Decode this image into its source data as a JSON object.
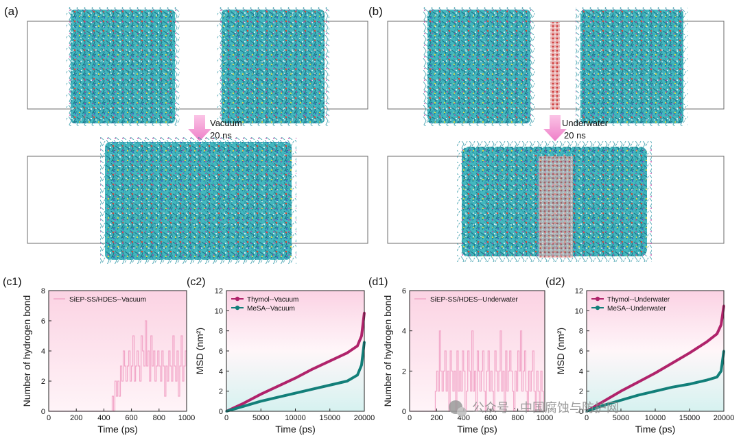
{
  "panels": {
    "a": {
      "label": "(a)",
      "arrow_label_1": "Vacuum",
      "arrow_label_2": "20 ns"
    },
    "b": {
      "label": "(b)",
      "arrow_label_1": "Underwater",
      "arrow_label_2": "20 ns"
    }
  },
  "colors": {
    "hbond_line": "#f2a6c8",
    "thymol": "#b0236b",
    "mesa": "#127f79",
    "arrow": "#f28ccf",
    "box": "#6b6b6b",
    "water": "#cf3b3b"
  },
  "watermark": "公众号 · 中国腐蚀与防护网",
  "chart_data": [
    {
      "id": "c1",
      "panel_label": "(c1)",
      "type": "line",
      "xlabel": "Time (ps)",
      "ylabel": "Number of hydrogen bond",
      "xlim": [
        0,
        1000
      ],
      "ylim": [
        0,
        8
      ],
      "xticks": [
        0,
        200,
        400,
        600,
        800,
        1000
      ],
      "yticks": [
        0,
        2,
        4,
        6,
        8
      ],
      "legend_position": "top-left",
      "series": [
        {
          "name": "SiEP-SS/HDES--Vacuum",
          "x": [
            0,
            100,
            200,
            300,
            400,
            450,
            460,
            470,
            480,
            490,
            500,
            510,
            520,
            530,
            540,
            550,
            560,
            570,
            580,
            590,
            600,
            610,
            620,
            630,
            640,
            650,
            660,
            670,
            680,
            690,
            700,
            710,
            720,
            730,
            740,
            750,
            760,
            770,
            780,
            790,
            800,
            810,
            820,
            830,
            840,
            850,
            860,
            870,
            880,
            890,
            900,
            910,
            920,
            930,
            940,
            950,
            960,
            970,
            980,
            990,
            1000
          ],
          "y": [
            0,
            0,
            0,
            0,
            0,
            0,
            1,
            0,
            2,
            1,
            2,
            1,
            3,
            2,
            4,
            3,
            2,
            3,
            4,
            2,
            3,
            5,
            2,
            3,
            4,
            3,
            2,
            5,
            4,
            3,
            6,
            3,
            4,
            2,
            5,
            3,
            4,
            2,
            3,
            4,
            3,
            2,
            4,
            3,
            1,
            3,
            2,
            4,
            3,
            2,
            5,
            3,
            2,
            4,
            1,
            3,
            5,
            2,
            3,
            4,
            3
          ]
        }
      ]
    },
    {
      "id": "c2",
      "panel_label": "(c2)",
      "type": "line",
      "xlabel": "Time (ps)",
      "ylabel": "MSD (nm²)",
      "xlim": [
        0,
        20000
      ],
      "ylim": [
        0,
        12
      ],
      "xticks": [
        0,
        5000,
        10000,
        15000,
        20000
      ],
      "yticks": [
        0,
        2,
        4,
        6,
        8,
        10,
        12
      ],
      "legend_position": "top-left",
      "series": [
        {
          "name": "Thymol--Vacuum",
          "x": [
            0,
            2500,
            5000,
            7500,
            10000,
            12500,
            15000,
            17500,
            19000,
            19600,
            20000
          ],
          "y": [
            0,
            0.8,
            1.7,
            2.5,
            3.3,
            4.2,
            5.0,
            5.8,
            6.5,
            7.5,
            9.8
          ]
        },
        {
          "name": "MeSA--Vacuum",
          "x": [
            0,
            2500,
            5000,
            7500,
            10000,
            12500,
            15000,
            17500,
            19000,
            19600,
            20000
          ],
          "y": [
            0,
            0.5,
            1.0,
            1.4,
            1.8,
            2.2,
            2.6,
            3.0,
            3.6,
            4.6,
            6.9
          ]
        }
      ]
    },
    {
      "id": "d1",
      "panel_label": "(d1)",
      "type": "line",
      "xlabel": "Time (ps)",
      "ylabel": "Number of hydrogen bond",
      "xlim": [
        0,
        1000
      ],
      "ylim": [
        0,
        6
      ],
      "xticks": [
        0,
        200,
        400,
        600,
        800,
        1000
      ],
      "yticks": [
        0,
        2,
        4,
        6
      ],
      "legend_position": "top-left",
      "series": [
        {
          "name": "SiEP-SS/HDES--Underwater",
          "x": [
            0,
            100,
            180,
            190,
            200,
            210,
            220,
            230,
            240,
            250,
            260,
            270,
            280,
            290,
            300,
            310,
            320,
            330,
            340,
            350,
            360,
            370,
            380,
            390,
            400,
            410,
            420,
            430,
            440,
            450,
            460,
            470,
            480,
            490,
            500,
            510,
            520,
            530,
            540,
            550,
            560,
            570,
            580,
            590,
            600,
            610,
            620,
            630,
            640,
            650,
            660,
            670,
            680,
            690,
            700,
            710,
            720,
            730,
            740,
            750,
            760,
            770,
            780,
            790,
            800,
            810,
            820,
            830,
            840,
            850,
            860,
            870,
            880,
            890,
            900,
            910,
            920,
            930,
            940,
            950,
            960,
            970,
            980,
            990,
            1000
          ],
          "y": [
            0,
            0,
            0,
            1,
            2,
            1,
            4,
            2,
            1,
            2,
            3,
            1,
            2,
            0,
            3,
            2,
            1,
            2,
            0,
            3,
            1,
            2,
            1,
            3,
            2,
            0,
            1,
            3,
            2,
            1,
            4,
            1,
            2,
            0,
            3,
            2,
            1,
            2,
            3,
            1,
            0,
            2,
            3,
            1,
            2,
            1,
            0,
            3,
            2,
            1,
            2,
            4,
            1,
            2,
            0,
            3,
            1,
            2,
            3,
            2,
            1,
            0,
            2,
            1,
            3,
            2,
            4,
            1,
            2,
            3,
            1,
            0,
            2,
            1,
            2,
            3,
            1,
            0,
            2,
            1,
            0,
            2,
            1,
            0,
            0
          ]
        }
      ]
    },
    {
      "id": "d2",
      "panel_label": "(d2)",
      "type": "line",
      "xlabel": "Time (ps)",
      "ylabel": "MSD (nm²)",
      "xlim": [
        0,
        20000
      ],
      "ylim": [
        0,
        12
      ],
      "xticks": [
        0,
        5000,
        10000,
        15000,
        20000
      ],
      "yticks": [
        0,
        2,
        4,
        6,
        8,
        10,
        12
      ],
      "legend_position": "top-left",
      "series": [
        {
          "name": "Thymol--Underwater",
          "x": [
            0,
            2500,
            5000,
            7500,
            10000,
            12500,
            15000,
            17500,
            19000,
            19600,
            20000
          ],
          "y": [
            0,
            1.0,
            2.0,
            2.9,
            3.8,
            4.8,
            5.8,
            6.9,
            7.7,
            8.6,
            10.5
          ]
        },
        {
          "name": "MeSA--Underwater",
          "x": [
            0,
            2500,
            5000,
            7500,
            10000,
            12500,
            15000,
            17500,
            19000,
            19600,
            20000
          ],
          "y": [
            0,
            0.6,
            1.1,
            1.6,
            2.0,
            2.4,
            2.7,
            3.1,
            3.4,
            4.0,
            6.0
          ]
        }
      ]
    }
  ]
}
